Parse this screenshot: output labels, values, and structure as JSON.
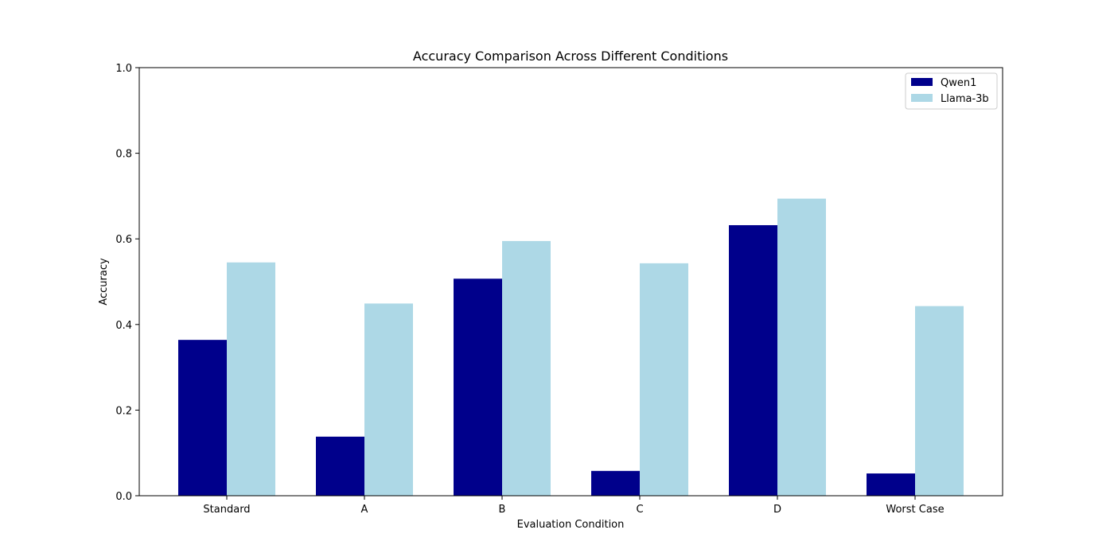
{
  "chart_data": {
    "type": "bar",
    "title": "Accuracy Comparison Across Different Conditions",
    "xlabel": "Evaluation Condition",
    "ylabel": "Accuracy",
    "ylim": [
      0,
      1.0
    ],
    "yticks": [
      "0.0",
      "0.2",
      "0.4",
      "0.6",
      "0.8",
      "1.0"
    ],
    "categories": [
      "Standard",
      "A",
      "B",
      "C",
      "D",
      "Worst Case"
    ],
    "series": [
      {
        "name": "Qwen1",
        "color": "#00008b",
        "values": [
          0.364,
          0.138,
          0.507,
          0.058,
          0.632,
          0.052
        ]
      },
      {
        "name": "Llama-3b",
        "color": "#add8e6",
        "values": [
          0.545,
          0.449,
          0.595,
          0.543,
          0.694,
          0.443
        ]
      }
    ],
    "grid": false,
    "legend_position": "top-right"
  }
}
